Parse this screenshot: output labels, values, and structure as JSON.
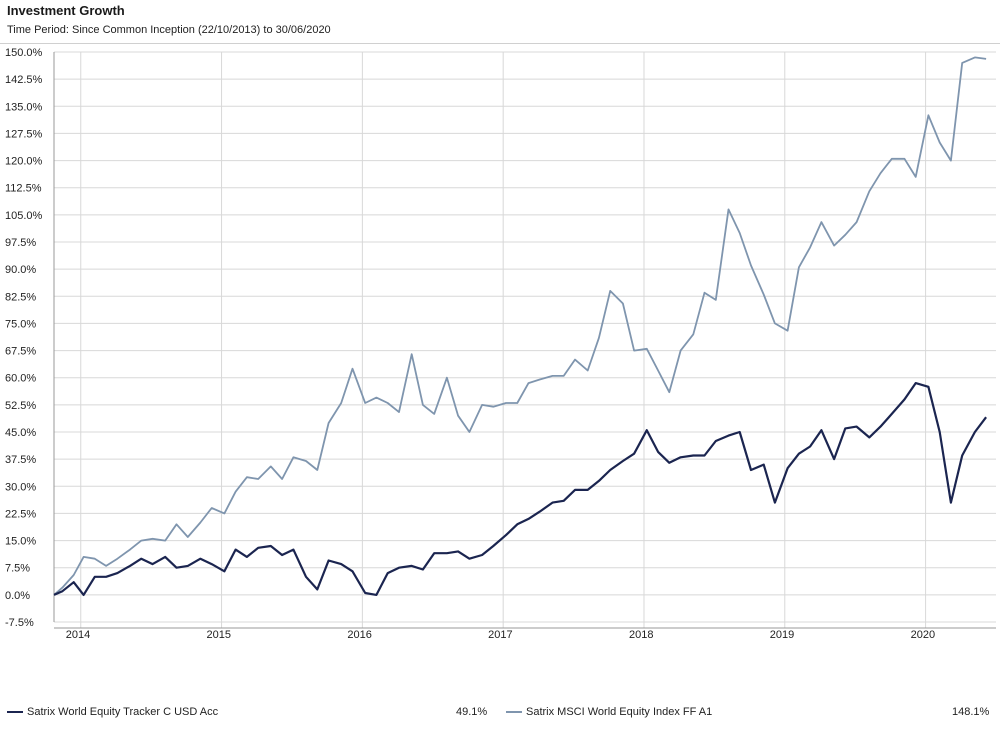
{
  "header": {
    "title": "Investment Growth",
    "subtitle": "Time Period: Since Common Inception (22/10/2013) to 30/06/2020"
  },
  "colors": {
    "fund": "#1b2550",
    "index": "#7f95ae",
    "grid": "#d8d8d8",
    "axis": "#999999"
  },
  "legend": [
    {
      "label": "Satrix World Equity Tracker C USD Acc",
      "value": "49.1%",
      "color": "#1b2550"
    },
    {
      "label": "Satrix MSCI World Equity Index FF A1",
      "value": "148.1%",
      "color": "#7f95ae"
    }
  ],
  "chart_data": {
    "type": "line",
    "title": "Investment Growth",
    "xlabel": "",
    "ylabel": "",
    "x_range": [
      2013.81,
      2020.5
    ],
    "ylim": [
      -7.5,
      150
    ],
    "y_ticks": [
      -7.5,
      0,
      7.5,
      15,
      22.5,
      30,
      37.5,
      45,
      52.5,
      60,
      67.5,
      75,
      82.5,
      90,
      97.5,
      105,
      112.5,
      120,
      127.5,
      135,
      142.5,
      150
    ],
    "y_tick_labels": [
      "-7.5%",
      "0.0%",
      "7.5%",
      "15.0%",
      "22.5%",
      "30.0%",
      "37.5%",
      "45.0%",
      "52.5%",
      "60.0%",
      "67.5%",
      "75.0%",
      "82.5%",
      "90.0%",
      "97.5%",
      "105.0%",
      "112.5%",
      "120.0%",
      "127.5%",
      "135.0%",
      "142.5%",
      "150.0%"
    ],
    "x_ticks": [
      2014,
      2015,
      2016,
      2017,
      2018,
      2019,
      2020
    ],
    "x_tick_labels": [
      "2014",
      "2015",
      "2016",
      "2017",
      "2018",
      "2019",
      "2020"
    ],
    "grid": true,
    "legend_position": "bottom",
    "series": [
      {
        "name": "Satrix World Equity Tracker C USD Acc",
        "color": "#1b2550",
        "x": [
          2013.81,
          2013.87,
          2013.95,
          2014.02,
          2014.1,
          2014.18,
          2014.26,
          2014.35,
          2014.43,
          2014.51,
          2014.6,
          2014.68,
          2014.76,
          2014.85,
          2014.93,
          2015.02,
          2015.1,
          2015.18,
          2015.26,
          2015.35,
          2015.43,
          2015.51,
          2015.6,
          2015.68,
          2015.76,
          2015.85,
          2015.93,
          2016.02,
          2016.1,
          2016.18,
          2016.26,
          2016.35,
          2016.43,
          2016.51,
          2016.6,
          2016.68,
          2016.76,
          2016.85,
          2016.93,
          2017.02,
          2017.1,
          2017.18,
          2017.26,
          2017.35,
          2017.43,
          2017.51,
          2017.6,
          2017.68,
          2017.76,
          2017.85,
          2017.93,
          2018.02,
          2018.1,
          2018.18,
          2018.26,
          2018.35,
          2018.43,
          2018.51,
          2018.6,
          2018.68,
          2018.76,
          2018.85,
          2018.93,
          2019.02,
          2019.1,
          2019.18,
          2019.26,
          2019.35,
          2019.43,
          2019.51,
          2019.6,
          2019.68,
          2019.76,
          2019.85,
          2019.93,
          2020.02,
          2020.1,
          2020.18,
          2020.26,
          2020.35,
          2020.43
        ],
        "y": [
          0.0,
          1.0,
          3.5,
          0.0,
          5.0,
          5.0,
          6.0,
          8.0,
          10.0,
          8.5,
          10.5,
          7.5,
          8.0,
          10.0,
          8.5,
          6.5,
          12.5,
          10.5,
          13.0,
          13.5,
          11.0,
          12.5,
          5.0,
          1.5,
          9.5,
          8.5,
          6.5,
          0.5,
          0.0,
          6.0,
          7.5,
          8.0,
          7.0,
          11.5,
          11.5,
          12.0,
          10.0,
          11.0,
          13.5,
          16.5,
          19.5,
          21.0,
          23.0,
          25.5,
          26.0,
          29.0,
          29.0,
          31.5,
          34.5,
          37.0,
          39.0,
          45.5,
          39.5,
          36.5,
          38.0,
          38.5,
          38.5,
          42.5,
          44.0,
          45.0,
          34.5,
          36.0,
          25.5,
          35.0,
          39.0,
          41.0,
          45.5,
          37.5,
          46.0,
          46.5,
          43.5,
          46.5,
          50.0,
          54.0,
          58.5,
          57.5,
          45.0,
          25.5,
          38.5,
          45.0,
          49.1
        ]
      },
      {
        "name": "Satrix MSCI World Equity Index FF A1",
        "color": "#7f95ae",
        "x": [
          2013.81,
          2013.87,
          2013.95,
          2014.02,
          2014.1,
          2014.18,
          2014.26,
          2014.35,
          2014.43,
          2014.51,
          2014.6,
          2014.68,
          2014.76,
          2014.85,
          2014.93,
          2015.02,
          2015.1,
          2015.18,
          2015.26,
          2015.35,
          2015.43,
          2015.51,
          2015.6,
          2015.68,
          2015.76,
          2015.85,
          2015.93,
          2016.02,
          2016.1,
          2016.18,
          2016.26,
          2016.35,
          2016.43,
          2016.51,
          2016.6,
          2016.68,
          2016.76,
          2016.85,
          2016.93,
          2017.02,
          2017.1,
          2017.18,
          2017.26,
          2017.35,
          2017.43,
          2017.51,
          2017.6,
          2017.68,
          2017.76,
          2017.85,
          2017.93,
          2018.02,
          2018.1,
          2018.18,
          2018.26,
          2018.35,
          2018.43,
          2018.51,
          2018.6,
          2018.68,
          2018.76,
          2018.85,
          2018.93,
          2019.02,
          2019.1,
          2019.18,
          2019.26,
          2019.35,
          2019.43,
          2019.51,
          2019.6,
          2019.68,
          2019.76,
          2019.85,
          2019.93,
          2020.02,
          2020.1,
          2020.18,
          2020.26,
          2020.35,
          2020.43
        ],
        "y": [
          0.0,
          2.0,
          5.5,
          10.5,
          10.0,
          8.0,
          10.0,
          12.5,
          15.0,
          15.5,
          15.0,
          19.5,
          16.0,
          20.0,
          24.0,
          22.5,
          28.5,
          32.5,
          32.0,
          35.5,
          32.0,
          38.0,
          37.0,
          34.5,
          47.5,
          53.0,
          62.5,
          53.0,
          54.5,
          53.0,
          50.5,
          66.5,
          52.5,
          50.0,
          60.0,
          49.5,
          45.0,
          52.5,
          52.0,
          53.0,
          53.0,
          58.5,
          59.5,
          60.5,
          60.5,
          65.0,
          62.0,
          71.0,
          84.0,
          80.5,
          67.5,
          68.0,
          62.0,
          56.0,
          67.5,
          72.0,
          83.5,
          81.5,
          106.5,
          100.0,
          91.0,
          83.0,
          75.0,
          73.0,
          90.5,
          96.0,
          103.0,
          96.5,
          99.5,
          103.0,
          111.5,
          116.5,
          120.5,
          120.5,
          115.5,
          132.5,
          125.0,
          120.0,
          147.0,
          148.5,
          148.1
        ]
      }
    ]
  }
}
